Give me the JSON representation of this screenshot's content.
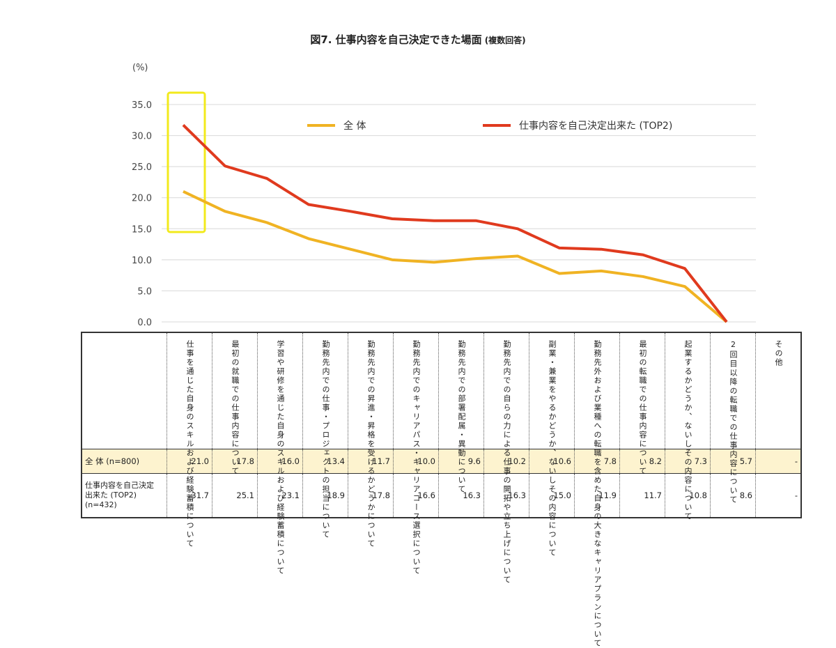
{
  "title": "図7. 仕事内容を自己決定できた場面",
  "subtitle": "(複数回答)",
  "chart_data": {
    "type": "line",
    "ylabel": "(%)",
    "ylim": [
      0,
      35
    ],
    "yticks": [
      "35.0",
      "30.0",
      "25.0",
      "20.0",
      "15.0",
      "10.0",
      "5.0",
      "0.0"
    ],
    "grid": true,
    "legend_position": "top-right",
    "highlight_category_index": 0,
    "highlight_color": "#f2ea1c",
    "categories": [
      "仕事を通じた自身のスキルおよび経験蓄積について",
      "最初の就職での仕事内容について",
      "学習や研修を通じた自身のスキルおよび経験蓄積について",
      "勤務先内での仕事・プロジェクトの担当について",
      "勤務先内での昇進・昇格を受けるかどうかについて",
      "勤務先内でのキャリアパス・キャリアコース選択について",
      "勤務先内での部署配属・異動について",
      "勤務先内での自らの力による仕事の開拓や立ち上げについて",
      "副業・兼業をやるかどうか、ないしその内容について",
      "勤務先外および業種への転職を含めた自身の大きなキャリアプランについて",
      "最初の転職での仕事内容について",
      "起業するかどうか、ないしその内容について",
      "2回目以降の転職での仕事内容について",
      "その他"
    ],
    "series": [
      {
        "name": "全 体",
        "table_label": "全 体 (n=800)",
        "color": "#f0b323",
        "values": [
          21.0,
          17.8,
          16.0,
          13.4,
          11.7,
          10.0,
          9.6,
          10.2,
          10.6,
          7.8,
          8.2,
          7.3,
          5.7,
          0
        ],
        "display": [
          "21.0",
          "17.8",
          "16.0",
          "13.4",
          "11.7",
          "10.0",
          "9.6",
          "10.2",
          "10.6",
          "7.8",
          "8.2",
          "7.3",
          "5.7",
          "-"
        ]
      },
      {
        "name": "仕事内容を自己決定出来た (TOP2)",
        "table_label": "仕事内容を自己決定\n出来た (TOP2)\n(n=432)",
        "color": "#e03a1e",
        "values": [
          31.7,
          25.1,
          23.1,
          18.9,
          17.8,
          16.6,
          16.3,
          16.3,
          15.0,
          11.9,
          11.7,
          10.8,
          8.6,
          0
        ],
        "display": [
          "31.7",
          "25.1",
          "23.1",
          "18.9",
          "17.8",
          "16.6",
          "16.3",
          "16.3",
          "15.0",
          "11.9",
          "11.7",
          "10.8",
          "8.6",
          "-"
        ]
      }
    ]
  }
}
